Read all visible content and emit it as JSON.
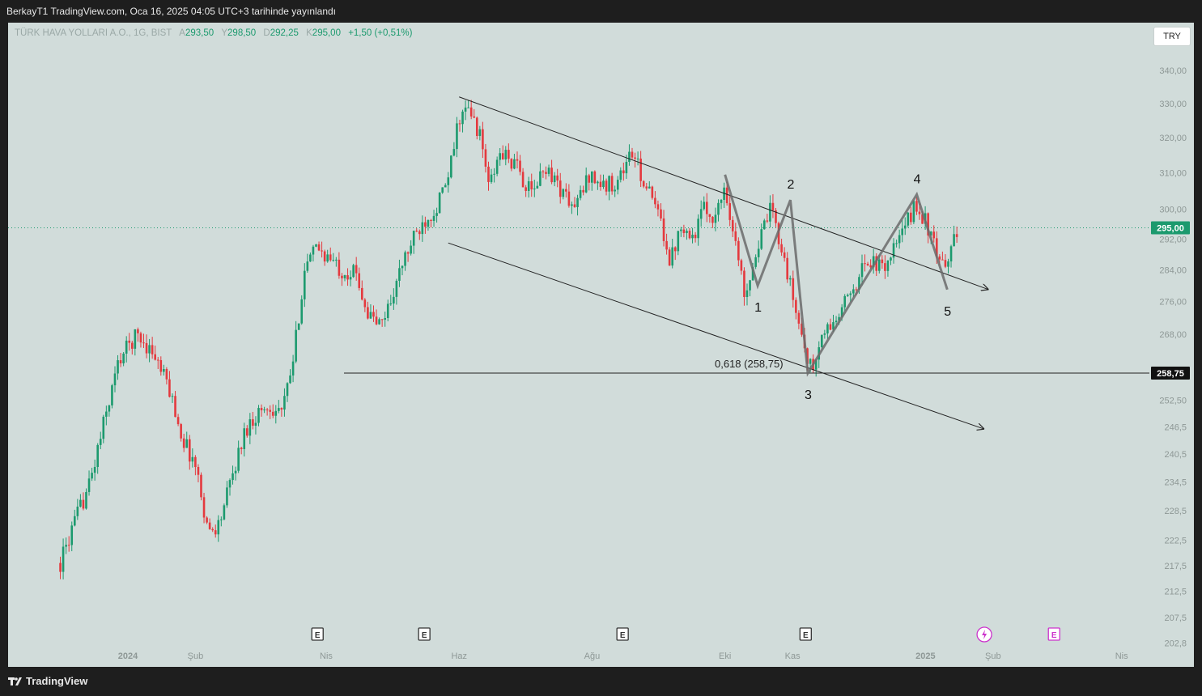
{
  "header": {
    "publish_text": "BerkayT1 TradingView.com, Oca 16, 2025 04:05 UTC+3 tarihinde yayınlandı"
  },
  "legend": {
    "symbol": "TÜRK HAVA YOLLARI A.O., 1G, BIST",
    "open_label": "A",
    "open_value": "293,50",
    "high_label": "Y",
    "high_value": "298,50",
    "low_label": "D",
    "low_value": "292,25",
    "close_label": "K",
    "close_value": "295,00",
    "change": "+1,50 (+0,51%)"
  },
  "currency_button": "TRY",
  "footer": {
    "brand": "TradingView"
  },
  "colors": {
    "background": "#d1dcda",
    "up": "#1c9a6e",
    "down": "#e4393e",
    "drawing": "#6b6b6b",
    "trendline": "#222222"
  },
  "chart_data": {
    "type": "candlestick",
    "symbol": "TÜRK HAVA YOLLARI A.O.",
    "interval": "1G",
    "exchange": "BIST",
    "currency": "TRY",
    "ylim": [
      202.8,
      345.0
    ],
    "y_scale": "log",
    "y_ticks": [
      "340,00",
      "330,00",
      "320,00",
      "310,00",
      "300,00",
      "292,00",
      "284,00",
      "276,00",
      "268,00",
      "252,50",
      "246,5",
      "240,5",
      "234,5",
      "228,5",
      "222,5",
      "217,5",
      "212,5",
      "207,5",
      "202,8"
    ],
    "y_tick_values": [
      340,
      330,
      320,
      310,
      300,
      292,
      284,
      276,
      268,
      252.5,
      246.5,
      240.5,
      234.5,
      228.5,
      222.5,
      217.5,
      212.5,
      207.5,
      202.8
    ],
    "x_ticks": [
      "2024",
      "Şub",
      "Nis",
      "Haz",
      "Ağu",
      "Eki",
      "Kas",
      "2025",
      "Şub",
      "Nis"
    ],
    "x_tick_dates": [
      "2024-01-01",
      "2024-02-01",
      "2024-04-01",
      "2024-06-01",
      "2024-08-01",
      "2024-10-01",
      "2024-11-01",
      "2025-01-01",
      "2025-02-01",
      "2025-04-01"
    ],
    "current_price": {
      "label": "295,00",
      "value": 295.0
    },
    "level_line": {
      "label": "258,75",
      "value": 258.75
    },
    "fib_annotation": "0,618 (258,75)",
    "price_path": [
      [
        "2023-12-01",
        218
      ],
      [
        "2023-12-15",
        235
      ],
      [
        "2023-12-28",
        262
      ],
      [
        "2024-01-05",
        268
      ],
      [
        "2024-01-12",
        264
      ],
      [
        "2024-01-20",
        255
      ],
      [
        "2024-01-26",
        244
      ],
      [
        "2024-02-01",
        238
      ],
      [
        "2024-02-07",
        224
      ],
      [
        "2024-02-12",
        226
      ],
      [
        "2024-02-18",
        236
      ],
      [
        "2024-02-24",
        246
      ],
      [
        "2024-03-01",
        250
      ],
      [
        "2024-03-07",
        251
      ],
      [
        "2024-03-12",
        250
      ],
      [
        "2024-03-17",
        262
      ],
      [
        "2024-03-22",
        284
      ],
      [
        "2024-03-28",
        290
      ],
      [
        "2024-04-02",
        287
      ],
      [
        "2024-04-08",
        284
      ],
      [
        "2024-04-15",
        283
      ],
      [
        "2024-04-20",
        273
      ],
      [
        "2024-04-26",
        270
      ],
      [
        "2024-05-01",
        277
      ],
      [
        "2024-05-07",
        287
      ],
      [
        "2024-05-12",
        293
      ],
      [
        "2024-05-17",
        298
      ],
      [
        "2024-05-21",
        300
      ],
      [
        "2024-05-27",
        308
      ],
      [
        "2024-06-01",
        326
      ],
      [
        "2024-06-05",
        328
      ],
      [
        "2024-06-10",
        322
      ],
      [
        "2024-06-15",
        306
      ],
      [
        "2024-06-20",
        316
      ],
      [
        "2024-06-27",
        312
      ],
      [
        "2024-07-04",
        304
      ],
      [
        "2024-07-11",
        312
      ],
      [
        "2024-07-17",
        306
      ],
      [
        "2024-07-24",
        300
      ],
      [
        "2024-07-31",
        310
      ],
      [
        "2024-08-06",
        306
      ],
      [
        "2024-08-13",
        308
      ],
      [
        "2024-08-19",
        316
      ],
      [
        "2024-08-26",
        306
      ],
      [
        "2024-09-02",
        296
      ],
      [
        "2024-09-06",
        286
      ],
      [
        "2024-09-11",
        297
      ],
      [
        "2024-09-16",
        292
      ],
      [
        "2024-09-21",
        300
      ],
      [
        "2024-09-27",
        298
      ],
      [
        "2024-10-01",
        307
      ],
      [
        "2024-10-04",
        296
      ],
      [
        "2024-10-10",
        278
      ],
      [
        "2024-10-16",
        290
      ],
      [
        "2024-10-22",
        300
      ],
      [
        "2024-10-27",
        290
      ],
      [
        "2024-11-01",
        277
      ],
      [
        "2024-11-07",
        264
      ],
      [
        "2024-11-10",
        258.75
      ],
      [
        "2024-11-15",
        268
      ],
      [
        "2024-11-22",
        272
      ],
      [
        "2024-11-29",
        280
      ],
      [
        "2024-12-06",
        287
      ],
      [
        "2024-12-12",
        284
      ],
      [
        "2024-12-17",
        289
      ],
      [
        "2024-12-21",
        293
      ],
      [
        "2024-12-27",
        301
      ],
      [
        "2025-01-01",
        297
      ],
      [
        "2025-01-06",
        288
      ],
      [
        "2025-01-10",
        283
      ],
      [
        "2025-01-14",
        294
      ],
      [
        "2025-01-16",
        295
      ]
    ],
    "channel_upper": [
      [
        "2024-06-01",
        332
      ],
      [
        "2025-01-30",
        279
      ]
    ],
    "channel_lower": [
      [
        "2024-05-27",
        291
      ],
      [
        "2025-01-28",
        246
      ]
    ],
    "wave_points": [
      {
        "label": "",
        "date": "2024-10-01",
        "price": 309.5
      },
      {
        "label": "1",
        "date": "2024-10-16",
        "price": 280
      },
      {
        "label": "2",
        "date": "2024-10-31",
        "price": 302.5
      },
      {
        "label": "3",
        "date": "2024-11-08",
        "price": 258.75
      },
      {
        "label": "4",
        "date": "2024-12-28",
        "price": 304
      },
      {
        "label": "5",
        "date": "2025-01-11",
        "price": 279
      }
    ],
    "earnings_markers": [
      {
        "date": "2024-03-28",
        "label": "E"
      },
      {
        "date": "2024-05-16",
        "label": "E"
      },
      {
        "date": "2024-08-15",
        "label": "E"
      },
      {
        "date": "2024-11-07",
        "label": "E"
      },
      {
        "date": "2025-03-01",
        "label": "E"
      }
    ],
    "dividend_marker": {
      "date": "2025-01-28"
    }
  }
}
